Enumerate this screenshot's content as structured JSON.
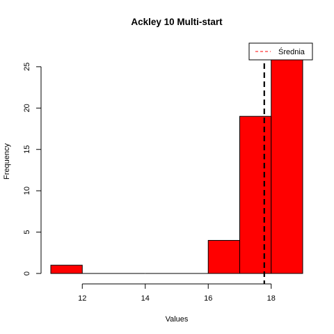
{
  "chart_data": {
    "type": "bar",
    "title": "Ackley 10 Multi-start",
    "xlabel": "Values",
    "ylabel": "Frequency",
    "bins": [
      {
        "x0": 11,
        "x1": 12,
        "count": 1
      },
      {
        "x0": 12,
        "x1": 13,
        "count": 0
      },
      {
        "x0": 13,
        "x1": 14,
        "count": 0
      },
      {
        "x0": 14,
        "x1": 15,
        "count": 0
      },
      {
        "x0": 15,
        "x1": 16,
        "count": 0
      },
      {
        "x0": 16,
        "x1": 17,
        "count": 4
      },
      {
        "x0": 17,
        "x1": 18,
        "count": 19
      },
      {
        "x0": 18,
        "x1": 19,
        "count": 26
      }
    ],
    "xlim": [
      11,
      19
    ],
    "ylim": [
      0,
      26
    ],
    "x_ticks": [
      12,
      14,
      16,
      18
    ],
    "y_ticks": [
      0,
      5,
      10,
      15,
      20,
      25
    ],
    "bar_color": "#FF0000",
    "mean_line": {
      "value": 17.78,
      "label": "Średnia",
      "color": "#000000",
      "legend_color": "#FF0000"
    },
    "legend_position": "top-right"
  }
}
